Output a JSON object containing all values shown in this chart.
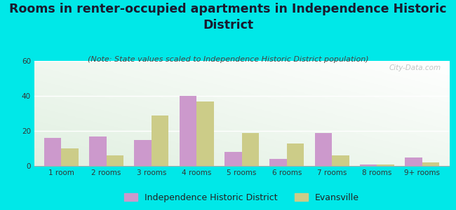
{
  "categories": [
    "1 room",
    "2 rooms",
    "3 rooms",
    "4 rooms",
    "5 rooms",
    "6 rooms",
    "7 rooms",
    "8 rooms",
    "9+ rooms"
  ],
  "ihd_values": [
    16,
    17,
    15,
    40,
    8,
    4,
    19,
    1,
    5
  ],
  "evansville_values": [
    10,
    6,
    29,
    37,
    19,
    13,
    6,
    1,
    2
  ],
  "ihd_color": "#cc99cc",
  "evansville_color": "#cccc88",
  "title": "Rooms in renter-occupied apartments in Independence Historic\nDistrict",
  "subtitle": "(Note: State values scaled to Independence Historic District population)",
  "legend_labels": [
    "Independence Historic District",
    "Evansville"
  ],
  "ylim": [
    0,
    60
  ],
  "yticks": [
    0,
    20,
    40,
    60
  ],
  "background_color": "#00e8e8",
  "bar_width": 0.38,
  "title_fontsize": 12.5,
  "subtitle_fontsize": 8,
  "tick_fontsize": 7.5,
  "legend_fontsize": 9
}
